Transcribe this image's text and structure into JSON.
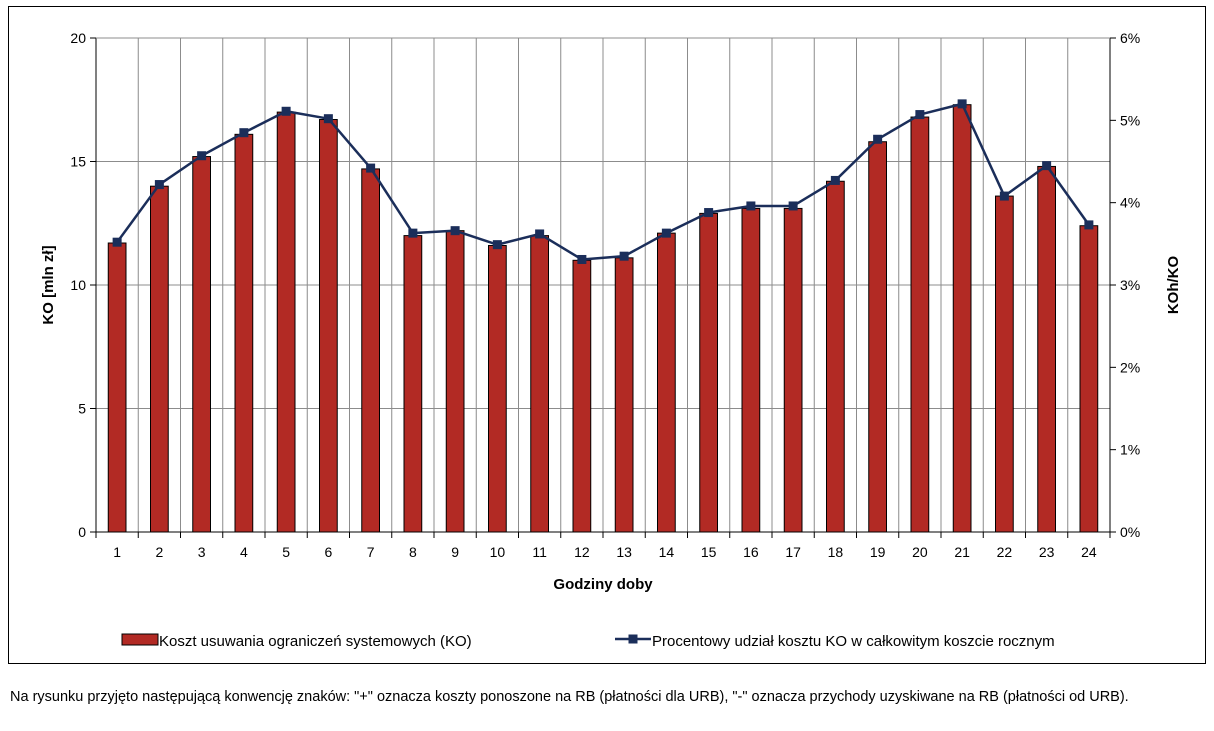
{
  "chart_data": {
    "type": "bar",
    "categories": [
      "1",
      "2",
      "3",
      "4",
      "5",
      "6",
      "7",
      "8",
      "9",
      "10",
      "11",
      "12",
      "13",
      "14",
      "15",
      "16",
      "17",
      "18",
      "19",
      "20",
      "21",
      "22",
      "23",
      "24"
    ],
    "xlabel": "Godziny doby",
    "ylabel": "KO [mln zł]",
    "ylabel_right": "KOh/KO",
    "ylim": [
      0,
      20
    ],
    "yticks": [
      "0",
      "5",
      "10",
      "15",
      "20"
    ],
    "ylim_right": [
      0,
      6
    ],
    "yticks_right": [
      "0%",
      "1%",
      "2%",
      "3%",
      "4%",
      "5%",
      "6%"
    ],
    "grid": true,
    "legend_position": "bottom",
    "series": [
      {
        "name": "Koszt usuwania ograniczeń systemowych (KO)",
        "type": "bar",
        "axis": "left",
        "color": "#b22a24",
        "values": [
          11.7,
          14.0,
          15.2,
          16.1,
          17.0,
          16.7,
          14.7,
          12.0,
          12.2,
          11.6,
          12.0,
          11.0,
          11.1,
          12.1,
          12.9,
          13.1,
          13.1,
          14.2,
          15.8,
          16.8,
          17.3,
          13.6,
          14.8,
          12.4
        ]
      },
      {
        "name": "Procentowy udział kosztu KO w całkowitym koszcie rocznym",
        "type": "line",
        "axis": "right",
        "color": "#1b2e5a",
        "values": [
          3.52,
          4.22,
          4.57,
          4.85,
          5.11,
          5.02,
          4.42,
          3.63,
          3.66,
          3.49,
          3.62,
          3.31,
          3.35,
          3.63,
          3.88,
          3.96,
          3.96,
          4.27,
          4.77,
          5.07,
          5.2,
          4.08,
          4.45,
          3.73
        ]
      }
    ]
  },
  "footnote": "Na rysunku przyjęto następującą konwencję znaków: \"+\" oznacza koszty ponoszone na RB (płatności dla URB), \"-\" oznacza przychody uzyskiwane na RB (płatności od URB)."
}
